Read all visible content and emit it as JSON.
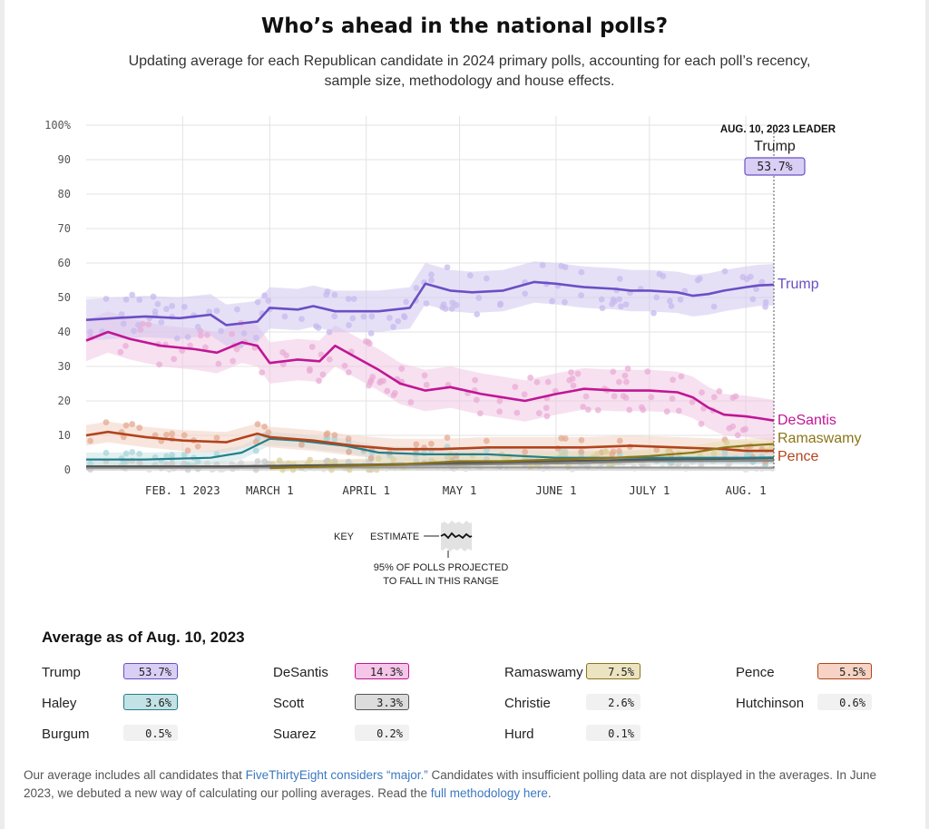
{
  "header": {
    "title": "Who’s ahead in the national polls?",
    "subtitle": "Updating average for each Republican candidate in 2024 primary polls, accounting for each poll’s recency, sample size, methodology and house effects."
  },
  "chart_data": {
    "type": "line",
    "title": "Who’s ahead in the national polls?",
    "x_axis": {
      "start": "2023-01-01",
      "end": "2023-08-10",
      "tick_labels": [
        "FEB. 1 2023",
        "MARCH 1",
        "APRIL 1",
        "MAY 1",
        "JUNE 1",
        "JULY 1",
        "AUG. 1"
      ],
      "tick_dates": [
        "2023-02-01",
        "2023-03-01",
        "2023-04-01",
        "2023-05-01",
        "2023-06-01",
        "2023-07-01",
        "2023-08-01"
      ]
    },
    "y_axis": {
      "range": [
        0,
        100
      ],
      "tick_labels": [
        "0",
        "10",
        "20",
        "30",
        "40",
        "50",
        "60",
        "70",
        "80",
        "90",
        "100%"
      ],
      "tick_values": [
        0,
        10,
        20,
        30,
        40,
        50,
        60,
        70,
        80,
        90,
        100
      ]
    },
    "grid": true,
    "leader": {
      "label": "AUG. 10, 2023 LEADER",
      "name": "Trump",
      "value": "53.7%"
    },
    "series": [
      {
        "name": "Trump",
        "color": "#6a4fc4",
        "band_color": "#d2c6f1",
        "dot_color": "#c7b9ee",
        "band": 6,
        "show_label": true,
        "points": [
          [
            "2023-01-01",
            43.5
          ],
          [
            "2023-01-10",
            44
          ],
          [
            "2023-01-20",
            44.5
          ],
          [
            "2023-01-31",
            44
          ],
          [
            "2023-02-10",
            45
          ],
          [
            "2023-02-15",
            42
          ],
          [
            "2023-02-20",
            42.5
          ],
          [
            "2023-02-25",
            43
          ],
          [
            "2023-03-01",
            47
          ],
          [
            "2023-03-10",
            46.5
          ],
          [
            "2023-03-15",
            47.5
          ],
          [
            "2023-03-22",
            46
          ],
          [
            "2023-03-28",
            46
          ],
          [
            "2023-04-05",
            46
          ],
          [
            "2023-04-15",
            47
          ],
          [
            "2023-04-20",
            54
          ],
          [
            "2023-04-28",
            52
          ],
          [
            "2023-05-05",
            51.5
          ],
          [
            "2023-05-15",
            52
          ],
          [
            "2023-05-25",
            54.5
          ],
          [
            "2023-06-01",
            54
          ],
          [
            "2023-06-10",
            53
          ],
          [
            "2023-06-20",
            52.5
          ],
          [
            "2023-06-25",
            52
          ],
          [
            "2023-07-01",
            52
          ],
          [
            "2023-07-10",
            51.5
          ],
          [
            "2023-07-15",
            50.5
          ],
          [
            "2023-07-20",
            51
          ],
          [
            "2023-07-25",
            52
          ],
          [
            "2023-08-01",
            53
          ],
          [
            "2023-08-05",
            53.5
          ],
          [
            "2023-08-10",
            53.7
          ]
        ]
      },
      {
        "name": "DeSantis",
        "color": "#c01694",
        "band_color": "#f0c6e3",
        "dot_color": "#e9acd6",
        "band": 6,
        "show_label": true,
        "points": [
          [
            "2023-01-01",
            37.5
          ],
          [
            "2023-01-08",
            40
          ],
          [
            "2023-01-15",
            38
          ],
          [
            "2023-01-25",
            36
          ],
          [
            "2023-02-05",
            35
          ],
          [
            "2023-02-12",
            34
          ],
          [
            "2023-02-20",
            37
          ],
          [
            "2023-02-25",
            36
          ],
          [
            "2023-03-01",
            31
          ],
          [
            "2023-03-10",
            32
          ],
          [
            "2023-03-17",
            31.5
          ],
          [
            "2023-03-22",
            36
          ],
          [
            "2023-03-28",
            33
          ],
          [
            "2023-04-05",
            29
          ],
          [
            "2023-04-12",
            25
          ],
          [
            "2023-04-20",
            23
          ],
          [
            "2023-04-28",
            24
          ],
          [
            "2023-05-08",
            22
          ],
          [
            "2023-05-15",
            21
          ],
          [
            "2023-05-22",
            20
          ],
          [
            "2023-06-01",
            22
          ],
          [
            "2023-06-10",
            23.5
          ],
          [
            "2023-06-20",
            23
          ],
          [
            "2023-07-01",
            23
          ],
          [
            "2023-07-10",
            22.5
          ],
          [
            "2023-07-15",
            21
          ],
          [
            "2023-07-20",
            18
          ],
          [
            "2023-07-25",
            16
          ],
          [
            "2023-08-01",
            15.5
          ],
          [
            "2023-08-05",
            15
          ],
          [
            "2023-08-10",
            14.3
          ]
        ]
      },
      {
        "name": "Ramaswamy",
        "color": "#8c7518",
        "band_color": "#e9dfb5",
        "dot_color": "#d9cf9a",
        "band": 2,
        "show_label": true,
        "points": [
          [
            "2023-03-01",
            0.5
          ],
          [
            "2023-03-20",
            1
          ],
          [
            "2023-04-10",
            1.5
          ],
          [
            "2023-05-01",
            2.5
          ],
          [
            "2023-05-15",
            2.5
          ],
          [
            "2023-06-01",
            3
          ],
          [
            "2023-06-20",
            3.5
          ],
          [
            "2023-07-01",
            4
          ],
          [
            "2023-07-15",
            5
          ],
          [
            "2023-07-25",
            6.5
          ],
          [
            "2023-08-01",
            7
          ],
          [
            "2023-08-10",
            7.5
          ]
        ]
      },
      {
        "name": "Pence",
        "color": "#b2441c",
        "band_color": "#f3d2c2",
        "dot_color": "#e4aa90",
        "band": 3,
        "show_label": true,
        "points": [
          [
            "2023-01-01",
            10
          ],
          [
            "2023-01-08",
            11
          ],
          [
            "2023-01-20",
            9.5
          ],
          [
            "2023-02-01",
            8.5
          ],
          [
            "2023-02-15",
            8
          ],
          [
            "2023-02-25",
            10.5
          ],
          [
            "2023-03-01",
            9.5
          ],
          [
            "2023-03-15",
            8.5
          ],
          [
            "2023-03-28",
            7
          ],
          [
            "2023-04-10",
            6
          ],
          [
            "2023-04-25",
            6
          ],
          [
            "2023-05-10",
            6.5
          ],
          [
            "2023-05-25",
            6.5
          ],
          [
            "2023-06-10",
            6.5
          ],
          [
            "2023-06-25",
            7
          ],
          [
            "2023-07-10",
            6.5
          ],
          [
            "2023-07-25",
            6
          ],
          [
            "2023-08-01",
            5.5
          ],
          [
            "2023-08-10",
            5.5
          ]
        ]
      },
      {
        "name": "Haley",
        "color": "#237f8a",
        "band_color": "#c8e4e6",
        "dot_color": "#a8d6da",
        "band": 2,
        "show_label": false,
        "points": [
          [
            "2023-01-01",
            3
          ],
          [
            "2023-01-20",
            3
          ],
          [
            "2023-02-10",
            3.5
          ],
          [
            "2023-02-20",
            5
          ],
          [
            "2023-03-01",
            9
          ],
          [
            "2023-03-10",
            8.5
          ],
          [
            "2023-03-25",
            7
          ],
          [
            "2023-04-05",
            5
          ],
          [
            "2023-04-20",
            4.5
          ],
          [
            "2023-05-10",
            4.5
          ],
          [
            "2023-06-01",
            3.5
          ],
          [
            "2023-06-20",
            3.5
          ],
          [
            "2023-07-10",
            3.5
          ],
          [
            "2023-08-01",
            3.5
          ],
          [
            "2023-08-10",
            3.6
          ]
        ]
      },
      {
        "name": "Scott",
        "color": "#555555",
        "band_color": "#dddddd",
        "dot_color": "#c9c9c9",
        "band": 1.5,
        "show_label": false,
        "points": [
          [
            "2023-01-01",
            1
          ],
          [
            "2023-02-15",
            1
          ],
          [
            "2023-04-01",
            1.5
          ],
          [
            "2023-05-01",
            2
          ],
          [
            "2023-06-01",
            2.5
          ],
          [
            "2023-07-01",
            3
          ],
          [
            "2023-08-10",
            3.3
          ]
        ]
      },
      {
        "name": "Christie",
        "color": "#888888",
        "band_color": "#e5e5e5",
        "dot_color": "#d2d2d2",
        "band": 1,
        "show_label": false,
        "points": [
          [
            "2023-01-01",
            1
          ],
          [
            "2023-03-01",
            1
          ],
          [
            "2023-05-01",
            1.5
          ],
          [
            "2023-06-10",
            2
          ],
          [
            "2023-07-01",
            2.5
          ],
          [
            "2023-08-10",
            2.6
          ]
        ]
      },
      {
        "name": "Hutchinson",
        "color": "#999999",
        "band_color": "#eeeeee",
        "dot_color": "#dddddd",
        "band": 0.5,
        "show_label": false,
        "points": [
          [
            "2023-01-01",
            0.5
          ],
          [
            "2023-04-01",
            0.7
          ],
          [
            "2023-08-10",
            0.6
          ]
        ]
      }
    ],
    "key": {
      "title": "KEY",
      "estimate_label": "ESTIMATE",
      "range_label_1": "95% OF POLLS PROJECTED",
      "range_label_2": "TO FALL IN THIS RANGE"
    }
  },
  "averages": {
    "title": "Average as of Aug. 10, 2023",
    "candidates": [
      {
        "name": "Trump",
        "value": "53.7%",
        "bg": "#d9cff5",
        "border": "#6a4fc4"
      },
      {
        "name": "DeSantis",
        "value": "14.3%",
        "bg": "#f6c6e8",
        "border": "#c01694"
      },
      {
        "name": "Ramaswamy",
        "value": "7.5%",
        "bg": "#ece4c0",
        "border": "#8c7518"
      },
      {
        "name": "Pence",
        "value": "5.5%",
        "bg": "#f6d3c4",
        "border": "#b2441c"
      },
      {
        "name": "Haley",
        "value": "3.6%",
        "bg": "#c3e2e5",
        "border": "#237f8a"
      },
      {
        "name": "Scott",
        "value": "3.3%",
        "bg": "#dcdcdc",
        "border": "#555555"
      },
      {
        "name": "Christie",
        "value": "2.6%",
        "bg": "#f1f1f1",
        "border": "#f1f1f1"
      },
      {
        "name": "Hutchinson",
        "value": "0.6%",
        "bg": "#f1f1f1",
        "border": "#f1f1f1"
      },
      {
        "name": "Burgum",
        "value": "0.5%",
        "bg": "#f1f1f1",
        "border": "#f1f1f1"
      },
      {
        "name": "Suarez",
        "value": "0.2%",
        "bg": "#f1f1f1",
        "border": "#f1f1f1"
      },
      {
        "name": "Hurd",
        "value": "0.1%",
        "bg": "#f1f1f1",
        "border": "#f1f1f1"
      }
    ]
  },
  "footnote": {
    "text_1": "Our average includes all candidates that ",
    "link_1": "FiveThirtyEight considers “major.”",
    "text_2": " Candidates with insufficient polling data are not displayed in the averages. In June 2023, we debuted a new way of calculating our polling averages. Read the ",
    "link_2": "full methodology here",
    "text_3": "."
  }
}
